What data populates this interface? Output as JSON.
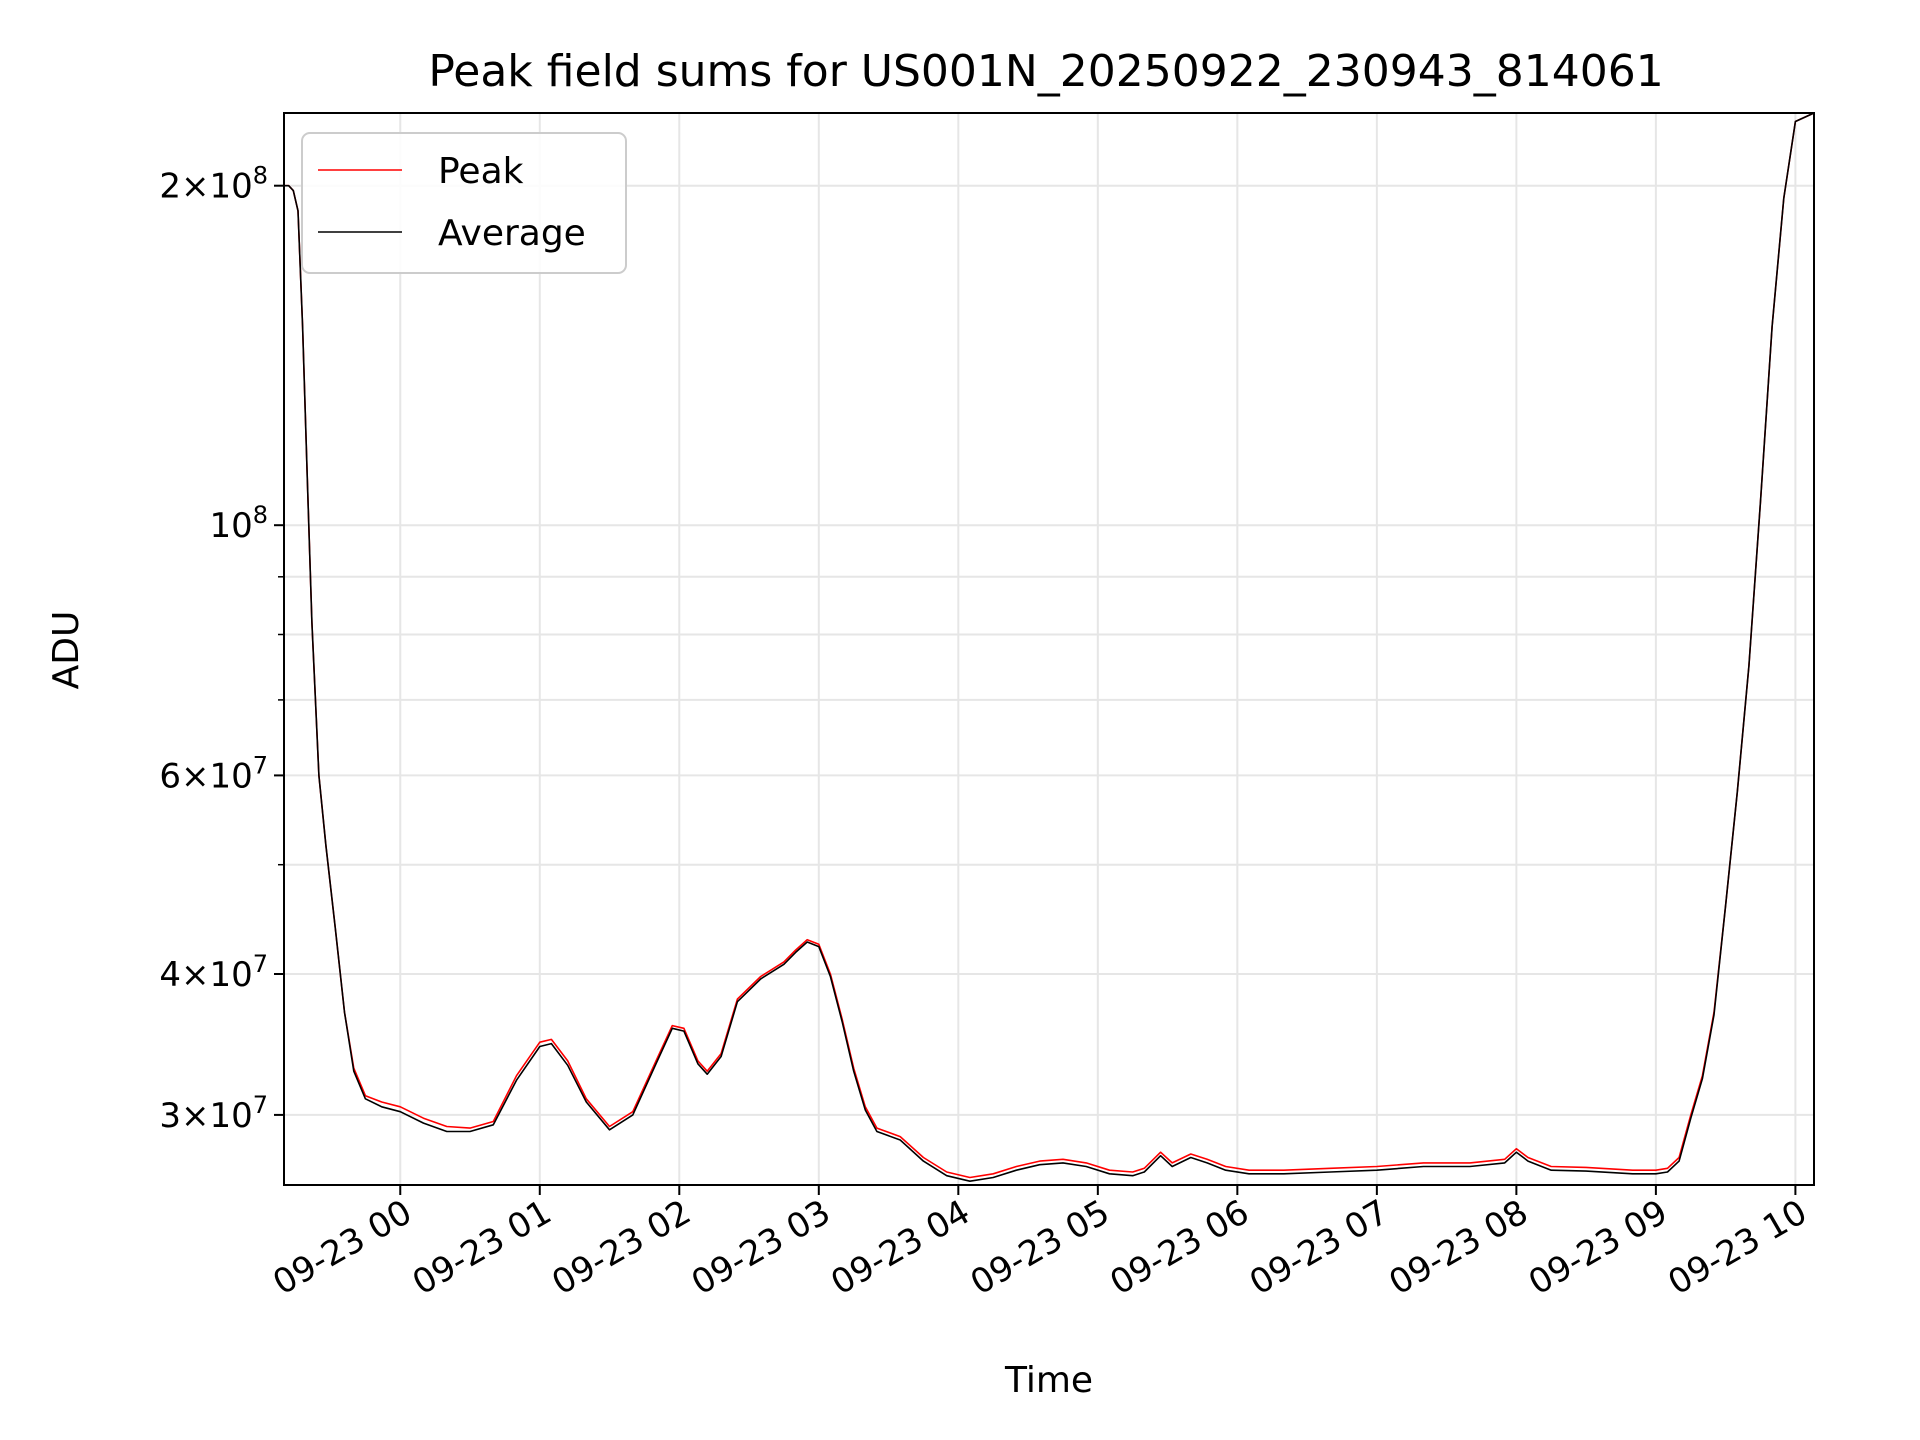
{
  "chart_data": {
    "type": "line",
    "title": "Peak field sums for US001N_20250922_230943_814061",
    "xlabel": "Time",
    "ylabel": "ADU",
    "yscale": "log",
    "ylim": [
      26000000,
      232000000
    ],
    "xlim": [
      "2025-09-22T23:10",
      "2025-09-23T10:08"
    ],
    "grid": true,
    "legend_position": "top-left",
    "x_ticks": [
      {
        "x": "2025-09-23T00:00",
        "label": "09-23 00"
      },
      {
        "x": "2025-09-23T01:00",
        "label": "09-23 01"
      },
      {
        "x": "2025-09-23T02:00",
        "label": "09-23 02"
      },
      {
        "x": "2025-09-23T03:00",
        "label": "09-23 03"
      },
      {
        "x": "2025-09-23T04:00",
        "label": "09-23 04"
      },
      {
        "x": "2025-09-23T05:00",
        "label": "09-23 05"
      },
      {
        "x": "2025-09-23T06:00",
        "label": "09-23 06"
      },
      {
        "x": "2025-09-23T07:00",
        "label": "09-23 07"
      },
      {
        "x": "2025-09-23T08:00",
        "label": "09-23 08"
      },
      {
        "x": "2025-09-23T09:00",
        "label": "09-23 09"
      },
      {
        "x": "2025-09-23T10:00",
        "label": "09-23 10"
      }
    ],
    "y_ticks": [
      {
        "y": 30000000,
        "base": "3",
        "exp": "7"
      },
      {
        "y": 40000000,
        "base": "4",
        "exp": "7"
      },
      {
        "y": 60000000,
        "base": "6",
        "exp": "7"
      },
      {
        "y": 100000000,
        "base": "",
        "exp": "8"
      },
      {
        "y": 200000000,
        "base": "2",
        "exp": "8"
      }
    ],
    "y_minor_ticks": [
      50000000,
      70000000,
      80000000,
      90000000
    ],
    "series": [
      {
        "name": "Peak",
        "color": "#ff0000",
        "points": [
          [
            "2025-09-22T23:10",
            200000000
          ],
          [
            "2025-09-22T23:12",
            200000000
          ],
          [
            "2025-09-22T23:14",
            198000000
          ],
          [
            "2025-09-22T23:16",
            190000000
          ],
          [
            "2025-09-22T23:18",
            150000000
          ],
          [
            "2025-09-22T23:20",
            110000000
          ],
          [
            "2025-09-22T23:22",
            82000000
          ],
          [
            "2025-09-22T23:25",
            60000000
          ],
          [
            "2025-09-22T23:28",
            52000000
          ],
          [
            "2025-09-22T23:32",
            44000000
          ],
          [
            "2025-09-22T23:36",
            37000000
          ],
          [
            "2025-09-22T23:40",
            33000000
          ],
          [
            "2025-09-22T23:45",
            31200000
          ],
          [
            "2025-09-22T23:52",
            30800000
          ],
          [
            "2025-09-23T00:00",
            30500000
          ],
          [
            "2025-09-23T00:10",
            29800000
          ],
          [
            "2025-09-23T00:20",
            29300000
          ],
          [
            "2025-09-23T00:30",
            29200000
          ],
          [
            "2025-09-23T00:40",
            29600000
          ],
          [
            "2025-09-23T00:50",
            32500000
          ],
          [
            "2025-09-23T01:00",
            34800000
          ],
          [
            "2025-09-23T01:05",
            35000000
          ],
          [
            "2025-09-23T01:12",
            33500000
          ],
          [
            "2025-09-23T01:20",
            31000000
          ],
          [
            "2025-09-23T01:30",
            29300000
          ],
          [
            "2025-09-23T01:40",
            30200000
          ],
          [
            "2025-09-23T01:50",
            33500000
          ],
          [
            "2025-09-23T01:57",
            36000000
          ],
          [
            "2025-09-23T02:02",
            35800000
          ],
          [
            "2025-09-23T02:08",
            33500000
          ],
          [
            "2025-09-23T02:12",
            32800000
          ],
          [
            "2025-09-23T02:18",
            34000000
          ],
          [
            "2025-09-23T02:25",
            38000000
          ],
          [
            "2025-09-23T02:35",
            39800000
          ],
          [
            "2025-09-23T02:45",
            41000000
          ],
          [
            "2025-09-23T02:50",
            42000000
          ],
          [
            "2025-09-23T02:55",
            42900000
          ],
          [
            "2025-09-23T03:00",
            42500000
          ],
          [
            "2025-09-23T03:05",
            40000000
          ],
          [
            "2025-09-23T03:10",
            36500000
          ],
          [
            "2025-09-23T03:15",
            33000000
          ],
          [
            "2025-09-23T03:20",
            30500000
          ],
          [
            "2025-09-23T03:25",
            29200000
          ],
          [
            "2025-09-23T03:35",
            28700000
          ],
          [
            "2025-09-23T03:45",
            27500000
          ],
          [
            "2025-09-23T03:55",
            26700000
          ],
          [
            "2025-09-23T04:05",
            26400000
          ],
          [
            "2025-09-23T04:15",
            26600000
          ],
          [
            "2025-09-23T04:25",
            27000000
          ],
          [
            "2025-09-23T04:35",
            27300000
          ],
          [
            "2025-09-23T04:45",
            27400000
          ],
          [
            "2025-09-23T04:55",
            27200000
          ],
          [
            "2025-09-23T05:05",
            26800000
          ],
          [
            "2025-09-23T05:15",
            26700000
          ],
          [
            "2025-09-23T05:20",
            26900000
          ],
          [
            "2025-09-23T05:27",
            27800000
          ],
          [
            "2025-09-23T05:32",
            27200000
          ],
          [
            "2025-09-23T05:40",
            27700000
          ],
          [
            "2025-09-23T05:47",
            27400000
          ],
          [
            "2025-09-23T05:55",
            27000000
          ],
          [
            "2025-09-23T06:05",
            26800000
          ],
          [
            "2025-09-23T06:20",
            26800000
          ],
          [
            "2025-09-23T06:40",
            26900000
          ],
          [
            "2025-09-23T07:00",
            27000000
          ],
          [
            "2025-09-23T07:20",
            27200000
          ],
          [
            "2025-09-23T07:40",
            27200000
          ],
          [
            "2025-09-23T07:55",
            27400000
          ],
          [
            "2025-09-23T08:00",
            28000000
          ],
          [
            "2025-09-23T08:05",
            27500000
          ],
          [
            "2025-09-23T08:15",
            27000000
          ],
          [
            "2025-09-23T08:30",
            26950000
          ],
          [
            "2025-09-23T08:50",
            26800000
          ],
          [
            "2025-09-23T09:00",
            26800000
          ],
          [
            "2025-09-23T09:05",
            26900000
          ],
          [
            "2025-09-23T09:10",
            27500000
          ],
          [
            "2025-09-23T09:15",
            30000000
          ],
          [
            "2025-09-23T09:20",
            32500000
          ],
          [
            "2025-09-23T09:25",
            37000000
          ],
          [
            "2025-09-23T09:30",
            46000000
          ],
          [
            "2025-09-23T09:35",
            58000000
          ],
          [
            "2025-09-23T09:40",
            75000000
          ],
          [
            "2025-09-23T09:45",
            105000000
          ],
          [
            "2025-09-23T09:50",
            150000000
          ],
          [
            "2025-09-23T09:55",
            195000000
          ],
          [
            "2025-09-23T10:00",
            228000000
          ],
          [
            "2025-09-23T10:08",
            232000000
          ]
        ]
      },
      {
        "name": "Average",
        "color": "#000000",
        "points": [
          [
            "2025-09-22T23:10",
            200000000
          ],
          [
            "2025-09-22T23:12",
            200000000
          ],
          [
            "2025-09-22T23:14",
            198000000
          ],
          [
            "2025-09-22T23:16",
            190000000
          ],
          [
            "2025-09-22T23:18",
            150000000
          ],
          [
            "2025-09-22T23:20",
            110000000
          ],
          [
            "2025-09-22T23:22",
            82000000
          ],
          [
            "2025-09-22T23:25",
            60000000
          ],
          [
            "2025-09-22T23:28",
            52000000
          ],
          [
            "2025-09-22T23:32",
            44000000
          ],
          [
            "2025-09-22T23:36",
            37000000
          ],
          [
            "2025-09-22T23:40",
            32800000
          ],
          [
            "2025-09-22T23:45",
            31000000
          ],
          [
            "2025-09-22T23:52",
            30500000
          ],
          [
            "2025-09-23T00:00",
            30200000
          ],
          [
            "2025-09-23T00:10",
            29500000
          ],
          [
            "2025-09-23T00:20",
            29000000
          ],
          [
            "2025-09-23T00:30",
            29000000
          ],
          [
            "2025-09-23T00:40",
            29400000
          ],
          [
            "2025-09-23T00:50",
            32200000
          ],
          [
            "2025-09-23T01:00",
            34500000
          ],
          [
            "2025-09-23T01:05",
            34700000
          ],
          [
            "2025-09-23T01:12",
            33200000
          ],
          [
            "2025-09-23T01:20",
            30800000
          ],
          [
            "2025-09-23T01:30",
            29100000
          ],
          [
            "2025-09-23T01:40",
            30000000
          ],
          [
            "2025-09-23T01:50",
            33300000
          ],
          [
            "2025-09-23T01:57",
            35800000
          ],
          [
            "2025-09-23T02:02",
            35600000
          ],
          [
            "2025-09-23T02:08",
            33300000
          ],
          [
            "2025-09-23T02:12",
            32600000
          ],
          [
            "2025-09-23T02:18",
            33800000
          ],
          [
            "2025-09-23T02:25",
            37800000
          ],
          [
            "2025-09-23T02:35",
            39600000
          ],
          [
            "2025-09-23T02:45",
            40800000
          ],
          [
            "2025-09-23T02:50",
            41800000
          ],
          [
            "2025-09-23T02:55",
            42700000
          ],
          [
            "2025-09-23T03:00",
            42300000
          ],
          [
            "2025-09-23T03:05",
            39800000
          ],
          [
            "2025-09-23T03:10",
            36300000
          ],
          [
            "2025-09-23T03:15",
            32800000
          ],
          [
            "2025-09-23T03:20",
            30300000
          ],
          [
            "2025-09-23T03:25",
            29000000
          ],
          [
            "2025-09-23T03:35",
            28500000
          ],
          [
            "2025-09-23T03:45",
            27300000
          ],
          [
            "2025-09-23T03:55",
            26500000
          ],
          [
            "2025-09-23T04:05",
            26200000
          ],
          [
            "2025-09-23T04:15",
            26400000
          ],
          [
            "2025-09-23T04:25",
            26800000
          ],
          [
            "2025-09-23T04:35",
            27100000
          ],
          [
            "2025-09-23T04:45",
            27200000
          ],
          [
            "2025-09-23T04:55",
            27000000
          ],
          [
            "2025-09-23T05:05",
            26600000
          ],
          [
            "2025-09-23T05:15",
            26500000
          ],
          [
            "2025-09-23T05:20",
            26700000
          ],
          [
            "2025-09-23T05:27",
            27600000
          ],
          [
            "2025-09-23T05:32",
            27000000
          ],
          [
            "2025-09-23T05:40",
            27500000
          ],
          [
            "2025-09-23T05:47",
            27200000
          ],
          [
            "2025-09-23T05:55",
            26800000
          ],
          [
            "2025-09-23T06:05",
            26600000
          ],
          [
            "2025-09-23T06:20",
            26600000
          ],
          [
            "2025-09-23T06:40",
            26700000
          ],
          [
            "2025-09-23T07:00",
            26800000
          ],
          [
            "2025-09-23T07:20",
            27000000
          ],
          [
            "2025-09-23T07:40",
            27000000
          ],
          [
            "2025-09-23T07:55",
            27200000
          ],
          [
            "2025-09-23T08:00",
            27800000
          ],
          [
            "2025-09-23T08:05",
            27300000
          ],
          [
            "2025-09-23T08:15",
            26800000
          ],
          [
            "2025-09-23T08:30",
            26750000
          ],
          [
            "2025-09-23T08:50",
            26600000
          ],
          [
            "2025-09-23T09:00",
            26600000
          ],
          [
            "2025-09-23T09:05",
            26700000
          ],
          [
            "2025-09-23T09:10",
            27300000
          ],
          [
            "2025-09-23T09:15",
            29800000
          ],
          [
            "2025-09-23T09:20",
            32300000
          ],
          [
            "2025-09-23T09:25",
            36800000
          ],
          [
            "2025-09-23T09:30",
            46000000
          ],
          [
            "2025-09-23T09:35",
            58000000
          ],
          [
            "2025-09-23T09:40",
            75000000
          ],
          [
            "2025-09-23T09:45",
            105000000
          ],
          [
            "2025-09-23T09:50",
            150000000
          ],
          [
            "2025-09-23T09:55",
            195000000
          ],
          [
            "2025-09-23T10:00",
            228000000
          ],
          [
            "2025-09-23T10:08",
            232000000
          ]
        ]
      }
    ]
  }
}
